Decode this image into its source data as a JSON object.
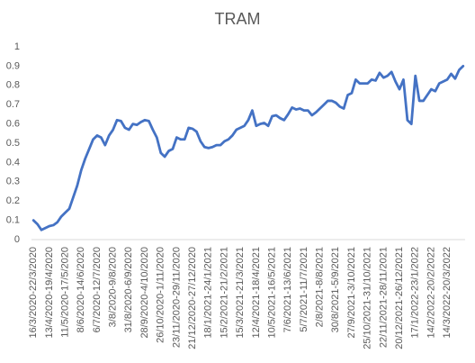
{
  "chart_data": {
    "type": "line",
    "title": "TRAM",
    "categories": [
      "16/3/2020-22/3/2020",
      null,
      null,
      null,
      "13/4/2020-19/4/2020",
      null,
      null,
      null,
      "11/5/2020-17/5/2020",
      null,
      null,
      null,
      "8/6/2020-14/6/2020",
      null,
      null,
      null,
      "6/7/2020-12/7/2020",
      null,
      null,
      null,
      "3/8/2020-9/8/2020",
      null,
      null,
      null,
      "31/8/2020-6/9/2020",
      null,
      null,
      null,
      "28/9/2020-4/10/2020",
      null,
      null,
      null,
      "26/10/2020-1/11/2020",
      null,
      null,
      null,
      "23/11/2020-29/11/2020",
      null,
      null,
      null,
      "21/12/2020-27/12/2020",
      null,
      null,
      null,
      "18/1/2021-24/1/2021",
      null,
      null,
      null,
      "15/2/2021-21/2/2021",
      null,
      null,
      null,
      "15/3/2021-21/3/2021",
      null,
      null,
      null,
      "12/4/2021-18/4/2021",
      null,
      null,
      null,
      "10/5/2021-16/5/2021",
      null,
      null,
      null,
      "7/6/2021-13/6/2021",
      null,
      null,
      null,
      "5/7/2021-11/7/2021",
      null,
      null,
      null,
      "2/8/2021-8/8/2021",
      null,
      null,
      null,
      "30/8/2021-5/9/2021",
      null,
      null,
      null,
      "27/9/2021-3/10/2021",
      null,
      null,
      null,
      "25/10/2021-31/10/2021",
      null,
      null,
      null,
      "22/11/2021-28/11/2021",
      null,
      null,
      null,
      "20/12/2021-26/12/2021",
      null,
      null,
      null,
      "17/1/2022-23/1/2022",
      null,
      null,
      null,
      "14/2/2022-20/2/2022",
      null,
      null,
      null,
      "14/3/2022-20/3/2022",
      null,
      null,
      null,
      null
    ],
    "series": [
      {
        "name": "TRAM",
        "color": "#4472c4",
        "values": [
          0.1,
          0.08,
          0.05,
          0.06,
          0.07,
          0.075,
          0.09,
          0.12,
          0.14,
          0.16,
          0.22,
          0.28,
          0.36,
          0.42,
          0.47,
          0.52,
          0.54,
          0.53,
          0.49,
          0.54,
          0.57,
          0.62,
          0.615,
          0.58,
          0.57,
          0.6,
          0.595,
          0.61,
          0.62,
          0.615,
          0.57,
          0.53,
          0.45,
          0.43,
          0.46,
          0.47,
          0.53,
          0.52,
          0.52,
          0.58,
          0.575,
          0.56,
          0.51,
          0.48,
          0.475,
          0.48,
          0.49,
          0.49,
          0.51,
          0.52,
          0.54,
          0.57,
          0.58,
          0.59,
          0.62,
          0.67,
          0.59,
          0.6,
          0.605,
          0.59,
          0.64,
          0.645,
          0.63,
          0.62,
          0.65,
          0.685,
          0.675,
          0.68,
          0.67,
          0.67,
          0.645,
          0.66,
          0.68,
          0.7,
          0.72,
          0.72,
          0.71,
          0.69,
          0.68,
          0.75,
          0.76,
          0.83,
          0.81,
          0.81,
          0.81,
          0.83,
          0.825,
          0.865,
          0.84,
          0.85,
          0.87,
          0.82,
          0.78,
          0.83,
          0.62,
          0.6,
          0.85,
          0.72,
          0.72,
          0.75,
          0.78,
          0.77,
          0.81,
          0.82,
          0.83,
          0.86,
          0.835,
          0.88,
          0.9
        ]
      }
    ],
    "ylim": [
      0,
      1
    ],
    "yticks": [
      0,
      0.1,
      0.2,
      0.3,
      0.4,
      0.5,
      0.6,
      0.7,
      0.8,
      0.9,
      1
    ],
    "grid": false
  }
}
